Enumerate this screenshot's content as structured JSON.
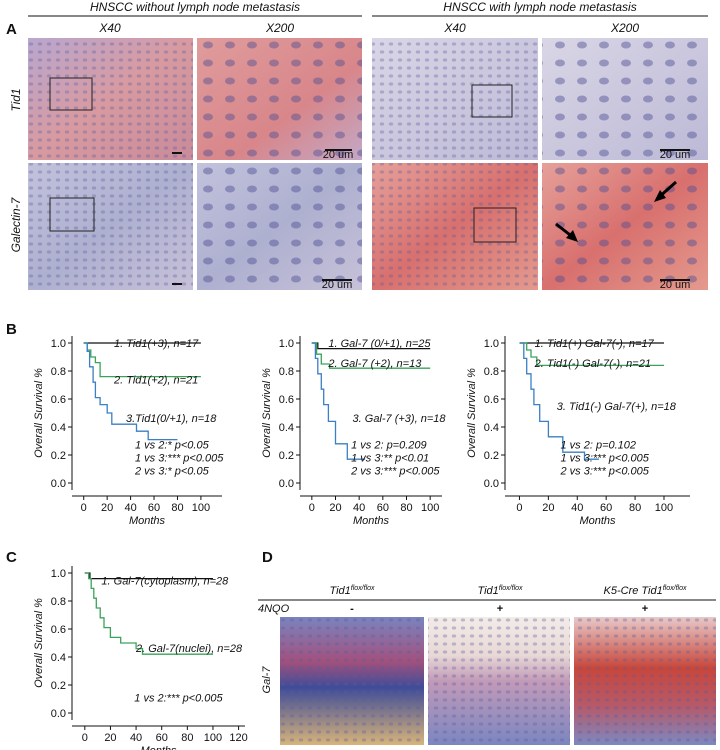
{
  "panel_labels": [
    "A",
    "B",
    "C",
    "D"
  ],
  "panel_a": {
    "groups": [
      "HNSCC without lymph node metastasis",
      "HNSCC with lymph node metastasis"
    ],
    "magnifications": [
      "X40",
      "X200",
      "X40",
      "X200"
    ],
    "rows": [
      "Tid1",
      "Galectin-7"
    ],
    "scale_bars": [
      "20 um",
      "20 um",
      "20 um",
      "20 um"
    ]
  },
  "chart_data": [
    {
      "type": "line",
      "y_label": "Overall Survival %",
      "x_label": "Months",
      "xlim": [
        -10,
        118
      ],
      "xticks": [
        0,
        20,
        40,
        60,
        80,
        100
      ],
      "ylim": [
        -0.05,
        1.05
      ],
      "yticks": [
        {
          "value": 0,
          "label": "0.0"
        },
        0.2,
        0.4,
        0.6,
        0.8,
        {
          "value": 1,
          "label": "1.0"
        }
      ],
      "series": [
        {
          "name": "1. Tid1(+3), n=17",
          "color": "#111111",
          "x": [
            0,
            100
          ],
          "values": [
            1,
            1
          ]
        },
        {
          "name": "2. Tid1(+2), n=21",
          "color": "#3aa35a",
          "x": [
            0,
            3,
            3,
            6,
            6,
            10,
            10,
            14,
            14,
            100
          ],
          "values": [
            1,
            1,
            0.95,
            0.95,
            0.9,
            0.9,
            0.86,
            0.86,
            0.76,
            0.76
          ]
        },
        {
          "name": "3.Tid1(0/+1), n=18",
          "color": "#3b7fc4",
          "x": [
            0,
            3,
            3,
            5,
            5,
            8,
            8,
            10,
            10,
            14,
            14,
            20,
            20,
            24,
            24,
            45,
            45,
            55,
            55,
            80
          ],
          "values": [
            1,
            1,
            0.94,
            0.94,
            0.83,
            0.83,
            0.72,
            0.72,
            0.61,
            0.61,
            0.56,
            0.56,
            0.5,
            0.5,
            0.42,
            0.42,
            0.37,
            0.37,
            0.31,
            0.31
          ]
        }
      ],
      "annotations": [
        "1 vs 2:* p<0.05",
        "1 vs 3:*** p<0.005",
        "2 vs 3:* p<0.05"
      ]
    },
    {
      "type": "line",
      "y_label": "Overall Survival %",
      "x_label": "Months",
      "xlim": [
        -10,
        110
      ],
      "xticks": [
        0,
        20,
        40,
        60,
        80,
        100
      ],
      "ylim": [
        -0.05,
        1.05
      ],
      "yticks": [
        {
          "value": 0,
          "label": "0.0"
        },
        0.2,
        0.4,
        0.6,
        0.8,
        {
          "value": 1,
          "label": "1.0"
        }
      ],
      "series": [
        {
          "name": "1. Gal-7 (0/+1), n=25",
          "color": "#111111",
          "x": [
            0,
            5,
            5,
            100
          ],
          "values": [
            1,
            1,
            0.96,
            0.96
          ]
        },
        {
          "name": "2. Gal-7 (+2), n=13",
          "color": "#3aa35a",
          "x": [
            0,
            4,
            4,
            8,
            8,
            15,
            15,
            100
          ],
          "values": [
            1,
            1,
            0.92,
            0.92,
            0.85,
            0.85,
            0.82,
            0.82
          ]
        },
        {
          "name": "3. Gal-7 (+3), n=18",
          "color": "#3b7fc4",
          "x": [
            0,
            3,
            3,
            5,
            5,
            8,
            8,
            10,
            10,
            14,
            14,
            20,
            20,
            30,
            30,
            45
          ],
          "values": [
            1,
            1,
            0.89,
            0.89,
            0.78,
            0.78,
            0.67,
            0.67,
            0.56,
            0.56,
            0.44,
            0.44,
            0.28,
            0.28,
            0.17,
            0.17
          ]
        }
      ],
      "annotations": [
        "1 vs 2:      p=0.209",
        "1 vs 3:**   p<0.01",
        "2 vs 3:*** p<0.005"
      ]
    },
    {
      "type": "line",
      "y_label": "Overall Survival %",
      "x_label": "Months",
      "xlim": [
        -10,
        118
      ],
      "xticks": [
        0,
        20,
        40,
        60,
        80,
        100
      ],
      "ylim": [
        -0.05,
        1.05
      ],
      "yticks": [
        {
          "value": 0,
          "label": "0.0"
        },
        0.2,
        0.4,
        0.6,
        0.8,
        {
          "value": 1,
          "label": "1.0"
        }
      ],
      "series": [
        {
          "name": "1. Tid1(+) Gal-7(-), n=17",
          "color": "#111111",
          "x": [
            0,
            100
          ],
          "values": [
            1,
            1
          ]
        },
        {
          "name": "2. Tid1(-) Gal-7(-), n=21",
          "color": "#3aa35a",
          "x": [
            0,
            5,
            5,
            8,
            8,
            12,
            12,
            100
          ],
          "values": [
            1,
            1,
            0.95,
            0.95,
            0.9,
            0.9,
            0.84,
            0.84
          ]
        },
        {
          "name": "3. Tid1(-) Gal-7(+), n=18",
          "color": "#3b7fc4",
          "x": [
            0,
            3,
            3,
            5,
            5,
            8,
            8,
            10,
            10,
            14,
            14,
            20,
            20,
            30,
            30,
            45,
            45,
            55
          ],
          "values": [
            1,
            1,
            0.89,
            0.89,
            0.78,
            0.78,
            0.67,
            0.67,
            0.56,
            0.56,
            0.44,
            0.44,
            0.33,
            0.33,
            0.22,
            0.22,
            0.17,
            0.17
          ]
        }
      ],
      "annotations": [
        "1 vs 2:      p=0.102",
        "1 vs 3:*** p<0.005",
        "2 vs 3:*** p<0.005"
      ]
    },
    {
      "type": "line",
      "y_label": "Overall Survival %",
      "x_label": "Months",
      "xlim": [
        -10,
        125
      ],
      "xticks": [
        0,
        20,
        40,
        60,
        80,
        100,
        120
      ],
      "ylim": [
        -0.05,
        1.05
      ],
      "yticks": [
        {
          "value": 0,
          "label": "0.0"
        },
        0.2,
        0.4,
        0.6,
        0.8,
        {
          "value": 1,
          "label": "1.0"
        }
      ],
      "series": [
        {
          "name": "1. Gal-7(cytoplasm), n=28",
          "color": "#111111",
          "x": [
            0,
            4,
            4,
            100
          ],
          "values": [
            1,
            1,
            0.96,
            0.96
          ]
        },
        {
          "name": "2. Gal-7(nuclei), n=28",
          "color": "#3aa35a",
          "x": [
            0,
            3,
            3,
            5,
            5,
            7,
            7,
            9,
            9,
            12,
            12,
            15,
            15,
            20,
            20,
            28,
            28,
            40,
            40,
            45,
            45,
            100
          ],
          "values": [
            1,
            1,
            0.96,
            0.96,
            0.89,
            0.89,
            0.82,
            0.82,
            0.75,
            0.75,
            0.68,
            0.68,
            0.61,
            0.61,
            0.54,
            0.54,
            0.5,
            0.5,
            0.46,
            0.46,
            0.42,
            0.42
          ]
        }
      ],
      "annotations": [
        "1 vs 2:*** p<0.005"
      ]
    }
  ],
  "panel_d": {
    "columns": [
      {
        "base": "Tid1",
        "sup": "flox/flox"
      },
      {
        "base": "Tid1",
        "sup": "flox/flox"
      },
      {
        "base": "K5-Cre Tid1",
        "sup": "flox/flox"
      }
    ],
    "treatment_label": "4NQO",
    "treatment": [
      "-",
      "+",
      "+"
    ],
    "row_label": "Gal-7"
  }
}
